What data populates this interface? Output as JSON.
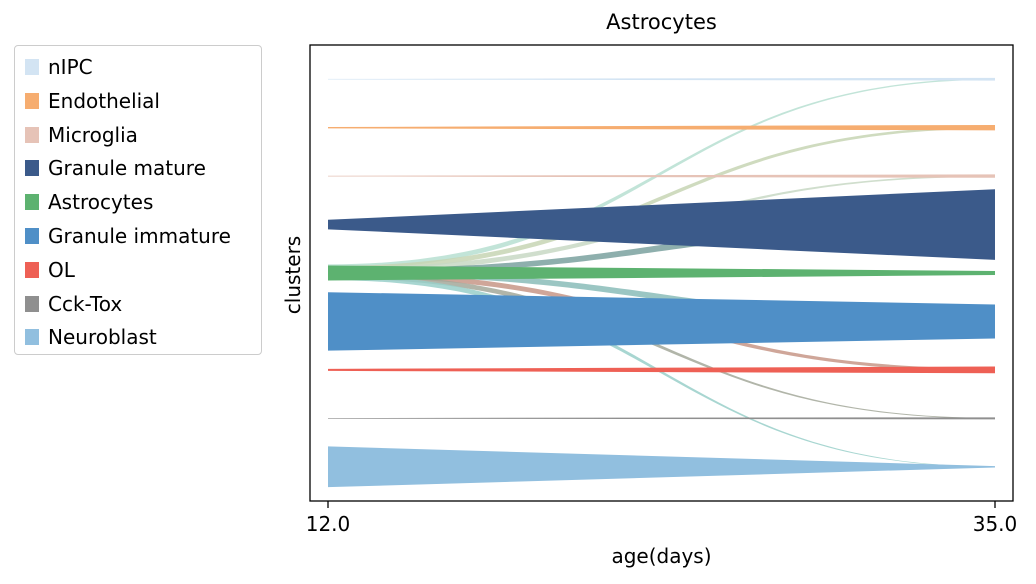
{
  "chart_data": {
    "type": "sankey",
    "title": "Astrocytes",
    "xlabel": "age(days)",
    "ylabel": "clusters",
    "x_ticks": [
      "12.0",
      "35.0"
    ],
    "xlim": [
      12.0,
      35.0
    ],
    "source_cluster": "Astrocytes",
    "legend_position": "outside-left",
    "clusters": [
      {
        "name": "nIPC",
        "color": "#d3e4f3",
        "size_start": 0.5,
        "size_end": 4
      },
      {
        "name": "Endothelial",
        "color": "#f6ad70",
        "size_start": 2,
        "size_end": 8
      },
      {
        "name": "Microglia",
        "color": "#e6c3b7",
        "size_start": 1,
        "size_end": 5
      },
      {
        "name": "Granule mature",
        "color": "#3b5a8a",
        "size_start": 14,
        "size_end": 104
      },
      {
        "name": "Astrocytes",
        "color": "#5db270",
        "size_start": 22,
        "size_end": 6
      },
      {
        "name": "Granule immature",
        "color": "#4f8fc7",
        "size_start": 86,
        "size_end": 50
      },
      {
        "name": "OL",
        "color": "#ee6055",
        "size_start": 3,
        "size_end": 10
      },
      {
        "name": "Cck-Tox",
        "color": "#8f8f8f",
        "size_start": 1,
        "size_end": 3
      },
      {
        "name": "Neuroblast",
        "color": "#91bfdf",
        "size_start": 60,
        "size_end": 2
      }
    ],
    "flows": [
      {
        "from": "Astrocytes",
        "to": "nIPC",
        "color": "#b7dfd1"
      },
      {
        "from": "Astrocytes",
        "to": "Endothelial",
        "color": "#c7d5b4"
      },
      {
        "from": "Astrocytes",
        "to": "Microglia",
        "color": "#c8d8c4"
      },
      {
        "from": "Astrocytes",
        "to": "Granule mature",
        "color": "#7aa19f"
      },
      {
        "from": "Astrocytes",
        "to": "Granule immature",
        "color": "#89bcb8"
      },
      {
        "from": "Astrocytes",
        "to": "OL",
        "color": "#c79687"
      },
      {
        "from": "Astrocytes",
        "to": "Cck-Tox",
        "color": "#a3a89a"
      },
      {
        "from": "Astrocytes",
        "to": "Neuroblast",
        "color": "#99cfc9"
      }
    ]
  }
}
